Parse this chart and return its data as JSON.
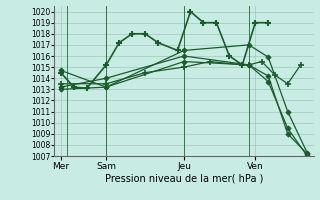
{
  "bg_color": "#c8ece4",
  "grid_color": "#a0c8bc",
  "line_color": "#1a5c2a",
  "xlabel": "Pression niveau de la mer( hPa )",
  "ylim": [
    1007,
    1020.5
  ],
  "yticks": [
    1007,
    1008,
    1009,
    1010,
    1011,
    1012,
    1013,
    1014,
    1015,
    1016,
    1017,
    1018,
    1019,
    1020
  ],
  "xlabels": [
    "Mer",
    "Sam",
    "Jeu",
    "Ven"
  ],
  "xpos_labels": [
    0.5,
    4,
    10,
    15.5
  ],
  "vlines_x": [
    1,
    4,
    10,
    15
  ],
  "xlim": [
    0,
    20
  ],
  "lines": [
    {
      "x": [
        0.5,
        1.5,
        2.5,
        4.0,
        5.0,
        6.0,
        7.0,
        8.0,
        9.5,
        10.5,
        11.5,
        12.5,
        13.5,
        14.5,
        15.5,
        16.5
      ],
      "y": [
        1014.5,
        1013.2,
        1013.1,
        1015.2,
        1017.2,
        1018.0,
        1018.0,
        1017.2,
        1016.5,
        1020.0,
        1019.0,
        1019.0,
        1016.0,
        1015.2,
        1019.0,
        1019.0
      ],
      "marker": "+",
      "ms": 5,
      "lw": 1.2,
      "mew": 1.5
    },
    {
      "x": [
        0.5,
        4.0,
        7.0,
        10.0,
        12.0,
        14.5,
        15.0,
        16.0,
        17.0,
        18.0,
        19.0
      ],
      "y": [
        1013.5,
        1013.5,
        1014.5,
        1015.0,
        1015.5,
        1015.2,
        1015.2,
        1015.5,
        1014.3,
        1013.5,
        1015.2
      ],
      "marker": "+",
      "ms": 4,
      "lw": 0.9,
      "mew": 1.2
    },
    {
      "x": [
        0.5,
        4.0,
        10.0,
        15.0,
        16.5,
        18.0,
        19.5
      ],
      "y": [
        1014.7,
        1013.2,
        1016.5,
        1017.0,
        1015.9,
        1011.0,
        1007.3
      ],
      "marker": "D",
      "ms": 2.5,
      "lw": 0.9,
      "mew": 0.8
    },
    {
      "x": [
        0.5,
        4.0,
        10.0,
        15.0,
        16.5,
        18.0,
        19.5
      ],
      "y": [
        1013.2,
        1014.0,
        1016.0,
        1015.2,
        1014.2,
        1009.0,
        1007.2
      ],
      "marker": "D",
      "ms": 2.5,
      "lw": 0.9,
      "mew": 0.8
    },
    {
      "x": [
        0.5,
        4.0,
        10.0,
        15.0,
        16.5,
        18.0,
        19.5
      ],
      "y": [
        1013.0,
        1013.2,
        1015.5,
        1015.2,
        1013.7,
        1009.5,
        1007.0
      ],
      "marker": "D",
      "ms": 2.5,
      "lw": 0.9,
      "mew": 0.8
    }
  ],
  "figsize": [
    3.2,
    2.0
  ],
  "dpi": 100
}
